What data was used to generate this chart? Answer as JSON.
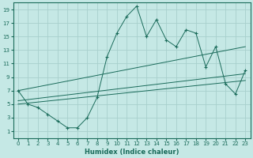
{
  "xlabel": "Humidex (Indice chaleur)",
  "bg_color": "#c5e8e5",
  "line_color": "#1a6b5a",
  "grid_color": "#a8d0cc",
  "xlim": [
    -0.5,
    23.5
  ],
  "ylim": [
    0,
    20
  ],
  "xticks": [
    0,
    1,
    2,
    3,
    4,
    5,
    6,
    7,
    8,
    9,
    10,
    11,
    12,
    13,
    14,
    15,
    16,
    17,
    18,
    19,
    20,
    21,
    22,
    23
  ],
  "yticks": [
    1,
    3,
    5,
    7,
    9,
    11,
    13,
    15,
    17,
    19
  ],
  "series": [
    [
      0,
      7
    ],
    [
      1,
      5
    ],
    [
      2,
      4.5
    ],
    [
      3,
      3.5
    ],
    [
      4,
      2.5
    ],
    [
      5,
      1.5
    ],
    [
      6,
      1.5
    ],
    [
      7,
      3
    ],
    [
      8,
      6
    ],
    [
      9,
      12
    ],
    [
      10,
      15.5
    ],
    [
      11,
      18
    ],
    [
      12,
      19.5
    ],
    [
      13,
      15
    ],
    [
      14,
      17.5
    ],
    [
      15,
      14.5
    ],
    [
      16,
      13.5
    ],
    [
      17,
      16
    ],
    [
      18,
      15.5
    ],
    [
      19,
      10.5
    ],
    [
      20,
      13.5
    ],
    [
      21,
      8
    ],
    [
      22,
      6.5
    ],
    [
      23,
      10
    ]
  ],
  "line1": [
    [
      0,
      7
    ],
    [
      23,
      13.5
    ]
  ],
  "line2": [
    [
      0,
      5.5
    ],
    [
      23,
      9.5
    ]
  ],
  "line3": [
    [
      0,
      5
    ],
    [
      23,
      8.5
    ]
  ]
}
